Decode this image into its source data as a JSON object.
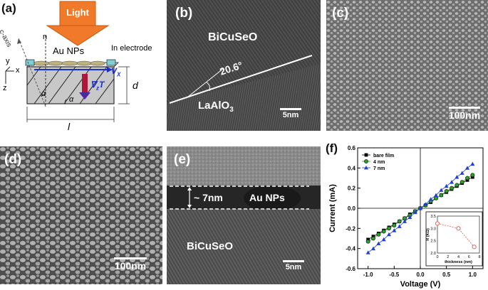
{
  "panels": {
    "a": {
      "letter": "(a)",
      "light": "Light",
      "c_axis": "c-axis",
      "n": "n",
      "au_nps": "Au NPs",
      "in_electrode": "In electrode",
      "axis_y": "y",
      "axis_x": "x",
      "axis_z": "z",
      "vx": "V",
      "vx_sub": "X",
      "grad_t": "∇",
      "grad_t_sub": "z",
      "grad_t_suffix": "T",
      "alpha": "α",
      "d": "d",
      "l": "l"
    },
    "b": {
      "letter": "(b)",
      "film": "BiCuSeO",
      "substrate": "LaAlO",
      "substrate_sub": "3",
      "angle": "20.6°",
      "scale": "5nm"
    },
    "c": {
      "letter": "(c)",
      "scale": "100nm"
    },
    "d": {
      "letter": "(d)",
      "scale": "100nm"
    },
    "e": {
      "letter": "(e)",
      "thickness": "~ 7nm",
      "au_nps": "Au NPs",
      "film": "BiCuSeO",
      "scale": "5nm"
    },
    "f": {
      "letter": "(f)",
      "colors": {
        "bare": "#000000",
        "four": "#2ca02c",
        "seven": "#1f3fd6",
        "inset": "#e0584a"
      },
      "chart_data": [
        {
          "type": "line",
          "xlabel": "Voltage (V)",
          "ylabel": "Current (mA)",
          "xlim": [
            -1.2,
            1.2
          ],
          "ylim": [
            -0.6,
            0.6
          ],
          "xticks": [
            "-1.0",
            "-0.5",
            "0.0",
            "0.5",
            "1.0"
          ],
          "yticks": [
            "-0.6",
            "-0.4",
            "-0.2",
            "0.0",
            "0.2",
            "0.4",
            "0.6"
          ],
          "legend_position": "top-left",
          "x": [
            -1.0,
            -0.9,
            -0.8,
            -0.7,
            -0.6,
            -0.5,
            -0.4,
            -0.3,
            -0.2,
            -0.1,
            0.0,
            0.1,
            0.2,
            0.3,
            0.4,
            0.5,
            0.6,
            0.7,
            0.8,
            0.9,
            1.0
          ],
          "series": [
            {
              "name": "bare film",
              "marker": "square",
              "values": [
                -0.31,
                -0.28,
                -0.25,
                -0.22,
                -0.19,
                -0.16,
                -0.13,
                -0.1,
                -0.06,
                -0.03,
                0.0,
                0.03,
                0.06,
                0.1,
                0.13,
                0.16,
                0.19,
                0.22,
                0.25,
                0.28,
                0.31
              ]
            },
            {
              "name": "4 nm",
              "marker": "circle",
              "values": [
                -0.33,
                -0.3,
                -0.26,
                -0.23,
                -0.2,
                -0.17,
                -0.13,
                -0.1,
                -0.07,
                -0.03,
                0.0,
                0.03,
                0.07,
                0.1,
                0.13,
                0.17,
                0.2,
                0.23,
                0.26,
                0.3,
                0.33
              ]
            },
            {
              "name": "7 nm",
              "marker": "triangle",
              "values": [
                -0.44,
                -0.4,
                -0.35,
                -0.31,
                -0.26,
                -0.22,
                -0.18,
                -0.13,
                -0.09,
                -0.04,
                0.0,
                0.04,
                0.09,
                0.13,
                0.18,
                0.22,
                0.26,
                0.31,
                0.35,
                0.4,
                0.44
              ]
            }
          ]
        },
        {
          "type": "line",
          "xlabel": "thickness (nm)",
          "ylabel": "R (KΩ)",
          "xlim": [
            0,
            8
          ],
          "ylim": [
            2.0,
            3.5
          ],
          "xticks": [
            "0",
            "2",
            "4",
            "6",
            "8"
          ],
          "yticks": [
            "2.0",
            "2.5",
            "3.0",
            "3.5"
          ],
          "x": [
            0,
            4,
            7
          ],
          "series": [
            {
              "values": [
                3.2,
                3.0,
                2.25
              ]
            }
          ]
        }
      ]
    }
  }
}
